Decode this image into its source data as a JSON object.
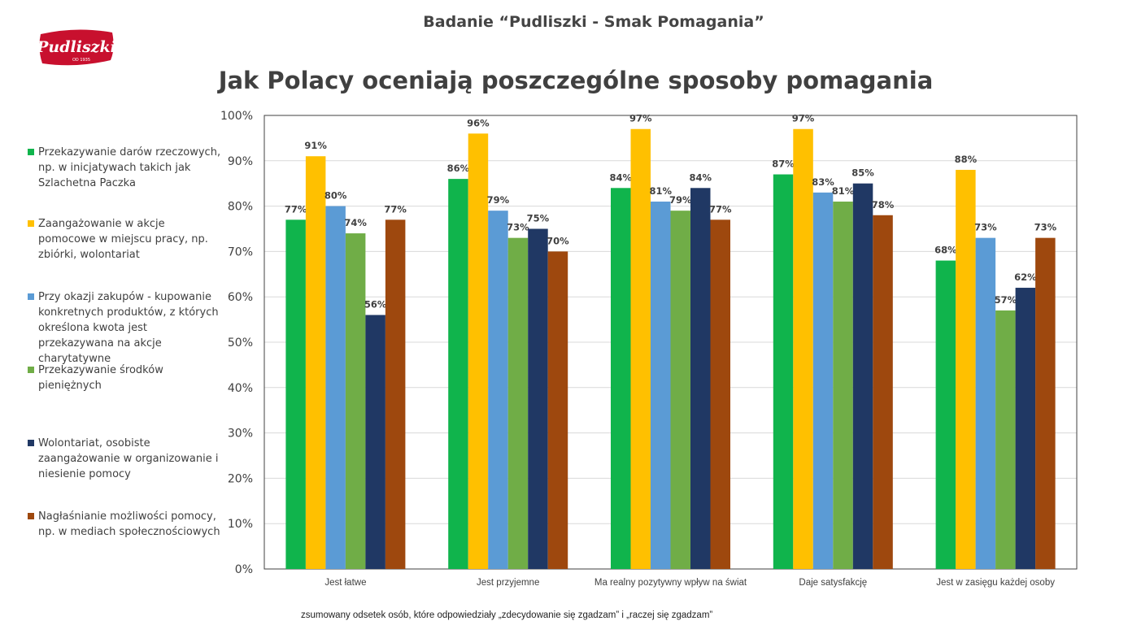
{
  "header": {
    "title": "Badanie “Pudliszki - Smak Pomagania”"
  },
  "logo": {
    "text": "Pudliszki",
    "subtext": "OD 1935"
  },
  "footnote": "zsumowany odsetek osób, które odpowiedziały „zdecydowanie się zgadzam” i „raczej się zgadzam”",
  "chart_data": {
    "type": "bar",
    "title": "Jak Polacy oceniają poszczególne sposoby pomagania",
    "xlabel": "",
    "ylabel": "",
    "ylim": [
      0,
      100
    ],
    "yticks": [
      "0%",
      "10%",
      "20%",
      "30%",
      "40%",
      "50%",
      "60%",
      "70%",
      "80%",
      "90%",
      "100%"
    ],
    "grid": true,
    "legend_position": "left",
    "categories": [
      "Jest łatwe",
      "Jest przyjemne",
      "Ma realny pozytywny wpływ na świat",
      "Daje satysfakcję",
      "Jest w zasięgu każdej osoby"
    ],
    "series": [
      {
        "name": "Przekazywanie darów rzeczowych, np. w inicjatywach takich jak Szlachetna Paczka",
        "color": "#10b44c",
        "values": [
          77,
          86,
          84,
          87,
          68
        ],
        "labels": [
          "77%",
          "86%",
          "84%",
          "87%",
          "68%"
        ]
      },
      {
        "name": "Zaangażowanie w akcje pomocowe w miejscu pracy, np. zbiórki, wolontariat",
        "color": "#ffc000",
        "values": [
          91,
          96,
          97,
          97,
          88
        ],
        "labels": [
          "91%",
          "96%",
          "97%",
          "97%",
          "88%"
        ]
      },
      {
        "name": "Przy okazji zakupów - kupowanie konkretnych produktów, z których określona kwota jest przekazywana na akcje charytatywne",
        "color": "#5b9bd5",
        "values": [
          80,
          79,
          81,
          83,
          73
        ],
        "labels": [
          "80%",
          "79%",
          "81%",
          "83%",
          "73%"
        ]
      },
      {
        "name": "Przekazywanie środków pieniężnych",
        "color": "#70ad47",
        "values": [
          74,
          73,
          79,
          81,
          57
        ],
        "labels": [
          "74%",
          "73%",
          "79%",
          "81%",
          "57%"
        ]
      },
      {
        "name": "Wolontariat, osobiste zaangażowanie w organizowanie i niesienie pomocy",
        "color": "#203864",
        "values": [
          56,
          75,
          84,
          85,
          62
        ],
        "labels": [
          "56%",
          "75%",
          "84%",
          "85%",
          "62%"
        ]
      },
      {
        "name": "Nagłaśnianie możliwości pomocy, np. w mediach społecznościowych",
        "color": "#9e480e",
        "values": [
          77,
          70,
          77,
          78,
          73
        ],
        "labels": [
          "77%",
          "70%",
          "77%",
          "78%",
          "73%"
        ]
      }
    ]
  }
}
